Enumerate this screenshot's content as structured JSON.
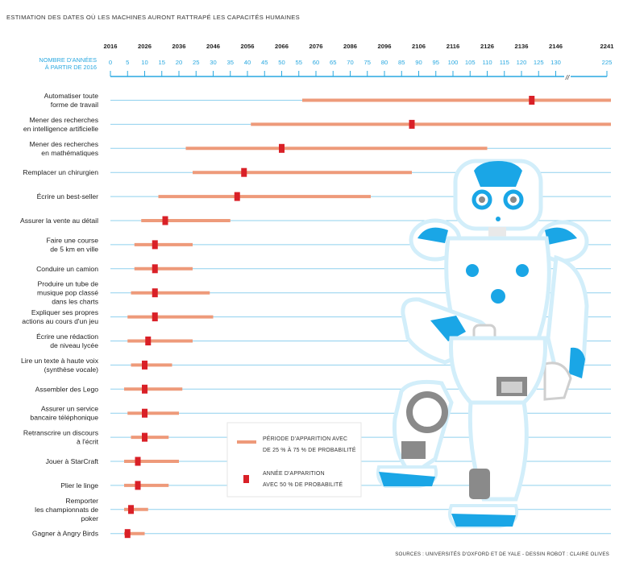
{
  "colors": {
    "axis": "#29a8e0",
    "gridline": "#8fd0ee",
    "range_bar": "#ee9a7a",
    "median_marker": "#d92027",
    "robot_blue": "#1aa6e6",
    "robot_outline": "#cfeefb",
    "robot_grey": "#7d7d7d"
  },
  "figure": {
    "title": "ESTIMATION DES DATES OÙ LES MACHINES AURONT RATTRAPÉ LES CAPACITÉS HUMAINES",
    "sources": "SOURCES : UNIVERSITÉS D'OXFORD ET DE YALE - DESSIN ROBOT : CLAIRE OLIVES",
    "illustration_icon": "robot-nao-illustration"
  },
  "chart_data": {
    "type": "range-dot",
    "title": "ESTIMATION DES DATES OÙ LES MACHINES AURONT RATTRAPÉ LES CAPACITÉS HUMAINES",
    "x_axis_years": {
      "ticks": [
        "2016",
        "2026",
        "2036",
        "2046",
        "2056",
        "2066",
        "2076",
        "2086",
        "2096",
        "2106",
        "2116",
        "2126",
        "2136",
        "2146",
        "2241"
      ]
    },
    "x_axis_years_from_2016": {
      "label_line1": "NOMBRE D'ANNÉES",
      "label_line2": "À PARTIR DE 2016",
      "ticks": [
        0,
        5,
        10,
        15,
        20,
        25,
        30,
        35,
        40,
        45,
        50,
        55,
        60,
        65,
        70,
        75,
        80,
        85,
        90,
        95,
        100,
        105,
        110,
        115,
        120,
        125,
        130,
        225
      ],
      "break_between": [
        130,
        225
      ],
      "break_symbol": "//"
    },
    "legend": {
      "range_line1": "PÉRIODE D'APPARITION AVEC",
      "range_line2": "DE 25 % À 75 % DE PROBABILITÉ",
      "median_line1": "ANNÉE D'APPARITION",
      "median_line2": "AVEC 50 % DE PROBABILITÉ"
    },
    "series": [
      {
        "label": [
          "Automatiser toute",
          "forme de travail"
        ],
        "low": 56,
        "median": 123,
        "high": 226
      },
      {
        "label": [
          "Mener des recherches",
          "en intelligence artificielle"
        ],
        "low": 41,
        "median": 88,
        "high": 226
      },
      {
        "label": [
          "Mener des recherches",
          "en mathématiques"
        ],
        "low": 22,
        "median": 50,
        "high": 110
      },
      {
        "label": [
          "Remplacer un chirurgien"
        ],
        "low": 24,
        "median": 39,
        "high": 88
      },
      {
        "label": [
          "Écrire un best-seller"
        ],
        "low": 14,
        "median": 37,
        "high": 76
      },
      {
        "label": [
          "Assurer la vente au détail"
        ],
        "low": 9,
        "median": 16,
        "high": 35
      },
      {
        "label": [
          "Faire une course",
          "de 5 km en ville"
        ],
        "low": 7,
        "median": 13,
        "high": 24
      },
      {
        "label": [
          "Conduire un camion"
        ],
        "low": 7,
        "median": 13,
        "high": 24
      },
      {
        "label": [
          "Produire un tube de",
          "musique pop classé",
          "dans les charts"
        ],
        "low": 6,
        "median": 13,
        "high": 29
      },
      {
        "label": [
          "Expliquer ses propres",
          "actions au cours d'un jeu"
        ],
        "low": 5,
        "median": 13,
        "high": 30
      },
      {
        "label": [
          "Écrire une rédaction",
          "de niveau lycée"
        ],
        "low": 5,
        "median": 11,
        "high": 24
      },
      {
        "label": [
          "Lire un texte à haute voix",
          "(synthèse vocale)"
        ],
        "low": 6,
        "median": 10,
        "high": 18
      },
      {
        "label": [
          "Assembler des Lego"
        ],
        "low": 4,
        "median": 10,
        "high": 21
      },
      {
        "label": [
          "Assurer un service",
          "bancaire téléphonique"
        ],
        "low": 5,
        "median": 10,
        "high": 20
      },
      {
        "label": [
          "Retranscrire un discours",
          "à l'écrit"
        ],
        "low": 6,
        "median": 10,
        "high": 17
      },
      {
        "label": [
          "Jouer à StarCraft"
        ],
        "low": 4,
        "median": 8,
        "high": 20
      },
      {
        "label": [
          "Plier le linge"
        ],
        "low": 4,
        "median": 8,
        "high": 17
      },
      {
        "label": [
          "Remporter",
          "les championnats de",
          "poker"
        ],
        "low": 4,
        "median": 6,
        "high": 11
      },
      {
        "label": [
          "Gagner à Angry Birds"
        ],
        "low": 4,
        "median": 5,
        "high": 10
      }
    ]
  }
}
